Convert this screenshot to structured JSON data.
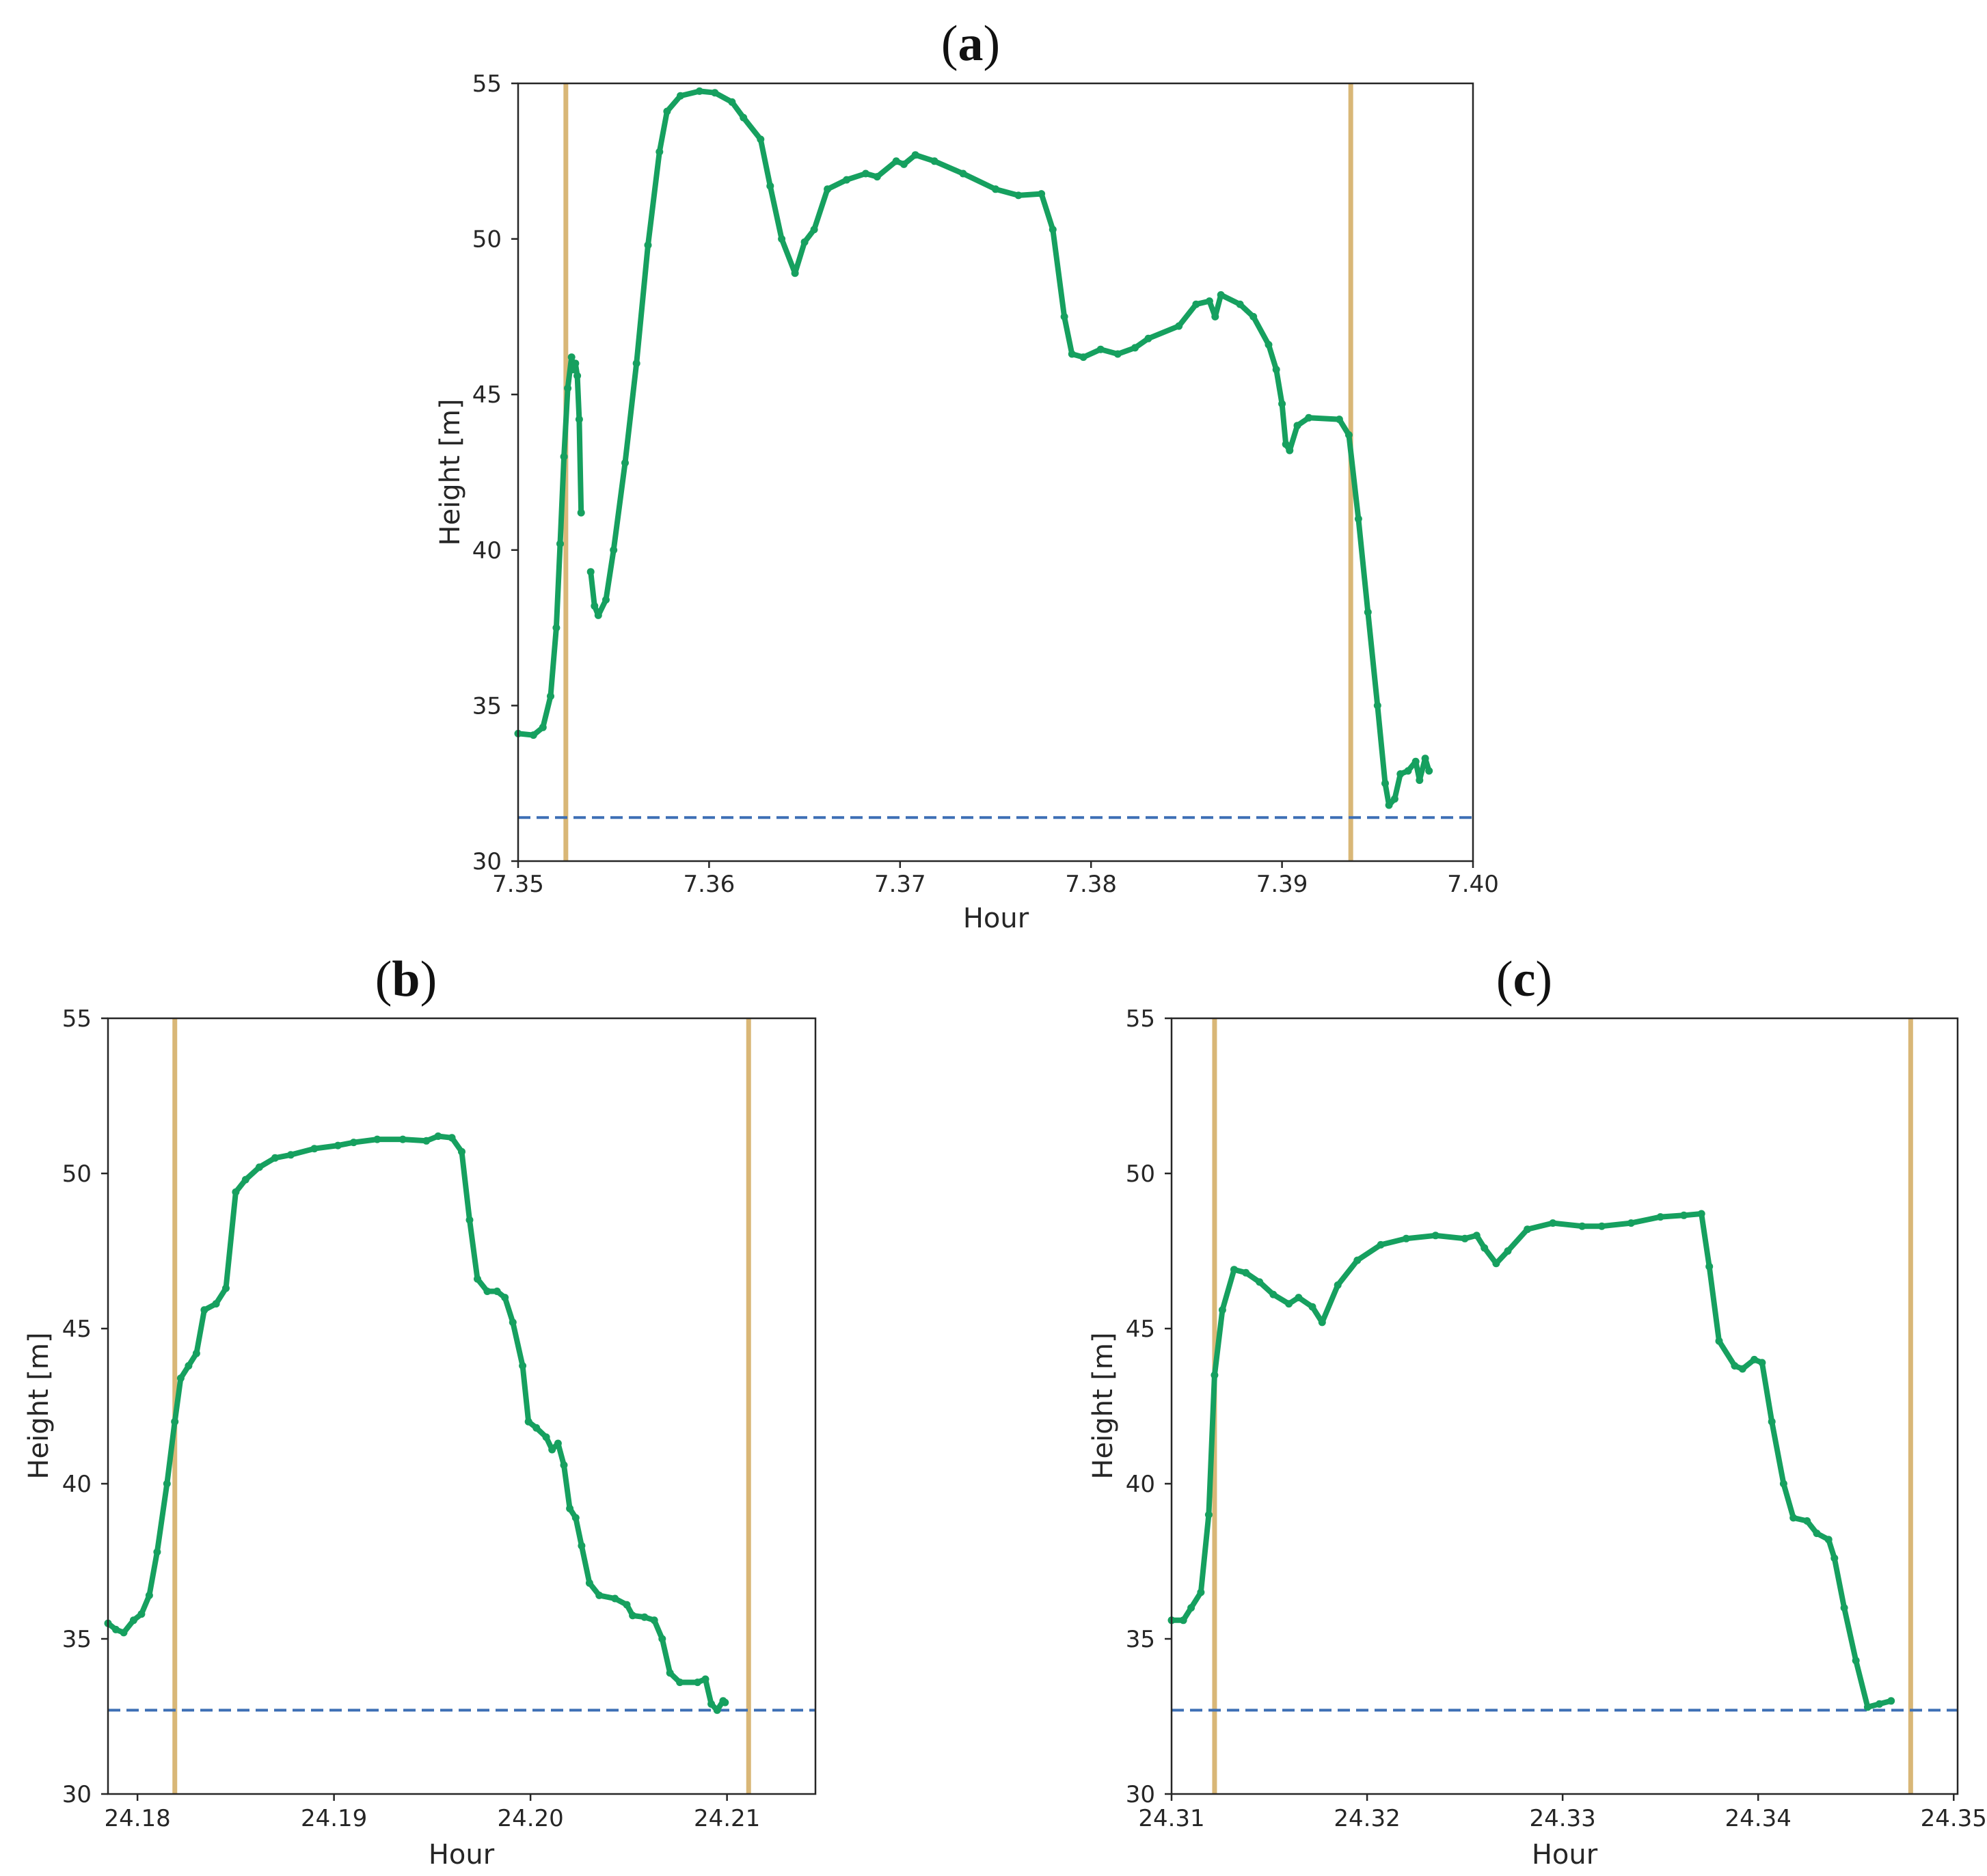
{
  "chart_data": [
    {
      "panel": "a",
      "type": "line",
      "title": "(a)",
      "title_parts": [
        "(",
        "a",
        ")"
      ],
      "xlabel": "Hour",
      "ylabel": "Height [m]",
      "xlim": [
        7.35,
        7.4
      ],
      "ylim": [
        30,
        55
      ],
      "xticks": [
        "7.35",
        "7.36",
        "7.37",
        "7.38",
        "7.39",
        "7.40"
      ],
      "xtick_values": [
        7.35,
        7.36,
        7.37,
        7.38,
        7.39,
        7.4
      ],
      "yticks": [
        "30",
        "35",
        "40",
        "45",
        "50",
        "55"
      ],
      "ytick_values": [
        30,
        35,
        40,
        45,
        50,
        55
      ],
      "vlines": [
        7.3525,
        7.3936
      ],
      "hline": 31.4,
      "series": [
        {
          "name": "height",
          "segments": [
            [
              [
                7.35,
                34.1
              ],
              [
                7.3508,
                34.05
              ],
              [
                7.3513,
                34.3
              ],
              [
                7.3517,
                35.3
              ],
              [
                7.352,
                37.5
              ],
              [
                7.3522,
                40.2
              ],
              [
                7.3524,
                43.0
              ],
              [
                7.3526,
                45.2
              ],
              [
                7.3528,
                46.2
              ],
              [
                7.3529,
                45.8
              ],
              [
                7.353,
                46.0
              ],
              [
                7.3531,
                45.6
              ],
              [
                7.3532,
                44.2
              ],
              [
                7.3533,
                41.2
              ]
            ],
            [
              [
                7.3538,
                39.3
              ],
              [
                7.354,
                38.2
              ],
              [
                7.3542,
                37.9
              ],
              [
                7.3546,
                38.4
              ],
              [
                7.355,
                40.0
              ],
              [
                7.3556,
                42.8
              ],
              [
                7.3562,
                46.0
              ],
              [
                7.3568,
                49.8
              ],
              [
                7.3574,
                52.8
              ],
              [
                7.3578,
                54.1
              ],
              [
                7.3585,
                54.6
              ],
              [
                7.3595,
                54.75
              ],
              [
                7.3603,
                54.7
              ],
              [
                7.3612,
                54.4
              ],
              [
                7.3618,
                53.9
              ],
              [
                7.3627,
                53.2
              ],
              [
                7.3632,
                51.7
              ],
              [
                7.3638,
                50.0
              ],
              [
                7.3645,
                48.9
              ],
              [
                7.365,
                49.9
              ],
              [
                7.3655,
                50.3
              ],
              [
                7.3662,
                51.6
              ],
              [
                7.3672,
                51.9
              ],
              [
                7.3682,
                52.1
              ],
              [
                7.3688,
                52.0
              ],
              [
                7.3698,
                52.5
              ],
              [
                7.3702,
                52.4
              ],
              [
                7.3708,
                52.7
              ],
              [
                7.3718,
                52.5
              ],
              [
                7.3733,
                52.1
              ],
              [
                7.375,
                51.6
              ],
              [
                7.3762,
                51.4
              ],
              [
                7.3774,
                51.45
              ],
              [
                7.378,
                50.3
              ],
              [
                7.3786,
                47.5
              ],
              [
                7.379,
                46.3
              ],
              [
                7.3796,
                46.2
              ],
              [
                7.3805,
                46.45
              ],
              [
                7.3814,
                46.3
              ],
              [
                7.3823,
                46.5
              ],
              [
                7.383,
                46.8
              ],
              [
                7.3846,
                47.2
              ],
              [
                7.3855,
                47.9
              ],
              [
                7.3862,
                48.0
              ],
              [
                7.3865,
                47.5
              ],
              [
                7.3868,
                48.2
              ],
              [
                7.3878,
                47.9
              ],
              [
                7.3885,
                47.5
              ],
              [
                7.3893,
                46.6
              ],
              [
                7.3897,
                45.8
              ],
              [
                7.39,
                44.7
              ],
              [
                7.3902,
                43.4
              ],
              [
                7.3904,
                43.2
              ],
              [
                7.3908,
                44.0
              ],
              [
                7.3914,
                44.25
              ],
              [
                7.393,
                44.2
              ],
              [
                7.3935,
                43.7
              ],
              [
                7.394,
                41.0
              ],
              [
                7.3945,
                38.0
              ],
              [
                7.395,
                35.0
              ],
              [
                7.3954,
                32.5
              ],
              [
                7.3956,
                31.8
              ],
              [
                7.3959,
                32.0
              ],
              [
                7.3962,
                32.8
              ],
              [
                7.3966,
                32.9
              ],
              [
                7.397,
                33.2
              ],
              [
                7.3972,
                32.6
              ],
              [
                7.3975,
                33.3
              ],
              [
                7.3977,
                32.9
              ]
            ]
          ]
        }
      ]
    },
    {
      "panel": "b",
      "type": "line",
      "title": "(b)",
      "title_parts": [
        "(",
        "b",
        ")"
      ],
      "xlabel": "Hour",
      "ylabel": "Height [m]",
      "xlim": [
        24.1785,
        24.2145
      ],
      "ylim": [
        30,
        55
      ],
      "xticks": [
        "24.18",
        "24.19",
        "24.20",
        "24.21"
      ],
      "xtick_values": [
        24.18,
        24.19,
        24.2,
        24.21
      ],
      "yticks": [
        "30",
        "35",
        "40",
        "45",
        "50",
        "55"
      ],
      "ytick_values": [
        30,
        35,
        40,
        45,
        50,
        55
      ],
      "vlines": [
        24.1819,
        24.2111
      ],
      "hline": 32.7,
      "series": [
        {
          "name": "height",
          "segments": [
            [
              [
                24.1785,
                35.5
              ],
              [
                24.1789,
                35.3
              ],
              [
                24.1793,
                35.2
              ],
              [
                24.1798,
                35.6
              ],
              [
                24.1802,
                35.8
              ],
              [
                24.1806,
                36.4
              ],
              [
                24.181,
                37.8
              ],
              [
                24.1815,
                40.0
              ],
              [
                24.1819,
                42.0
              ],
              [
                24.1822,
                43.4
              ],
              [
                24.1826,
                43.8
              ],
              [
                24.183,
                44.2
              ],
              [
                24.1834,
                45.6
              ],
              [
                24.184,
                45.8
              ],
              [
                24.1845,
                46.3
              ],
              [
                24.185,
                49.4
              ],
              [
                24.1855,
                49.8
              ],
              [
                24.1862,
                50.2
              ],
              [
                24.187,
                50.5
              ],
              [
                24.1878,
                50.6
              ],
              [
                24.189,
                50.8
              ],
              [
                24.1902,
                50.9
              ],
              [
                24.191,
                51.0
              ],
              [
                24.1922,
                51.1
              ],
              [
                24.1935,
                51.1
              ],
              [
                24.1947,
                51.05
              ],
              [
                24.1953,
                51.2
              ],
              [
                24.196,
                51.15
              ],
              [
                24.1965,
                50.7
              ],
              [
                24.1969,
                48.5
              ],
              [
                24.1973,
                46.6
              ],
              [
                24.1978,
                46.2
              ],
              [
                24.1983,
                46.2
              ],
              [
                24.1987,
                46.0
              ],
              [
                24.1991,
                45.2
              ],
              [
                24.1996,
                43.8
              ],
              [
                24.1999,
                42.0
              ],
              [
                24.2003,
                41.8
              ],
              [
                24.2008,
                41.5
              ],
              [
                24.2011,
                41.1
              ],
              [
                24.2014,
                41.3
              ],
              [
                24.2017,
                40.6
              ],
              [
                24.202,
                39.2
              ],
              [
                24.2023,
                38.9
              ],
              [
                24.2026,
                38.0
              ],
              [
                24.203,
                36.8
              ],
              [
                24.2035,
                36.4
              ],
              [
                24.2043,
                36.3
              ],
              [
                24.2049,
                36.1
              ],
              [
                24.2052,
                35.75
              ],
              [
                24.2058,
                35.7
              ],
              [
                24.2063,
                35.6
              ],
              [
                24.2067,
                35.0
              ],
              [
                24.2071,
                33.9
              ],
              [
                24.2076,
                33.6
              ],
              [
                24.2085,
                33.6
              ],
              [
                24.2089,
                33.7
              ],
              [
                24.2092,
                32.9
              ],
              [
                24.2095,
                32.7
              ],
              [
                24.2098,
                33.0
              ],
              [
                24.2099,
                32.95
              ]
            ]
          ]
        }
      ]
    },
    {
      "panel": "c",
      "type": "line",
      "title": "(c)",
      "title_parts": [
        "(",
        "c",
        ")"
      ],
      "xlabel": "Hour",
      "ylabel": "Height [m]",
      "xlim": [
        24.31,
        24.3502
      ],
      "ylim": [
        30,
        55
      ],
      "xticks": [
        "24.31",
        "24.32",
        "24.33",
        "24.34",
        "24.35"
      ],
      "xtick_values": [
        24.31,
        24.32,
        24.33,
        24.34,
        24.35
      ],
      "yticks": [
        "30",
        "35",
        "40",
        "45",
        "50",
        "55"
      ],
      "ytick_values": [
        30,
        35,
        40,
        45,
        50,
        55
      ],
      "vlines": [
        24.3122,
        24.3478
      ],
      "hline": 32.7,
      "series": [
        {
          "name": "height",
          "segments": [
            [
              [
                24.31,
                35.6
              ],
              [
                24.3106,
                35.6
              ],
              [
                24.311,
                36.0
              ],
              [
                24.3115,
                36.5
              ],
              [
                24.3119,
                39.0
              ],
              [
                24.3122,
                43.5
              ],
              [
                24.3126,
                45.6
              ],
              [
                24.3132,
                46.9
              ],
              [
                24.3138,
                46.8
              ],
              [
                24.3145,
                46.5
              ],
              [
                24.3152,
                46.1
              ],
              [
                24.316,
                45.8
              ],
              [
                24.3165,
                46.0
              ],
              [
                24.3172,
                45.7
              ],
              [
                24.3177,
                45.2
              ],
              [
                24.3185,
                46.4
              ],
              [
                24.3195,
                47.2
              ],
              [
                24.3207,
                47.7
              ],
              [
                24.322,
                47.9
              ],
              [
                24.3235,
                48.0
              ],
              [
                24.325,
                47.9
              ],
              [
                24.3256,
                48.0
              ],
              [
                24.326,
                47.6
              ],
              [
                24.3266,
                47.1
              ],
              [
                24.3272,
                47.5
              ],
              [
                24.3282,
                48.2
              ],
              [
                24.3295,
                48.4
              ],
              [
                24.331,
                48.3
              ],
              [
                24.332,
                48.3
              ],
              [
                24.3335,
                48.4
              ],
              [
                24.335,
                48.6
              ],
              [
                24.3362,
                48.65
              ],
              [
                24.3371,
                48.7
              ],
              [
                24.3375,
                47.0
              ],
              [
                24.338,
                44.6
              ],
              [
                24.3388,
                43.8
              ],
              [
                24.3392,
                43.7
              ],
              [
                24.3398,
                44.0
              ],
              [
                24.3402,
                43.9
              ],
              [
                24.3407,
                42.0
              ],
              [
                24.3413,
                40.0
              ],
              [
                24.3418,
                38.9
              ],
              [
                24.3425,
                38.8
              ],
              [
                24.343,
                38.4
              ],
              [
                24.3436,
                38.2
              ],
              [
                24.3439,
                37.6
              ],
              [
                24.3444,
                36.0
              ],
              [
                24.345,
                34.3
              ],
              [
                24.3456,
                32.8
              ],
              [
                24.3462,
                32.9
              ],
              [
                24.3468,
                33.0
              ]
            ]
          ]
        }
      ]
    }
  ]
}
